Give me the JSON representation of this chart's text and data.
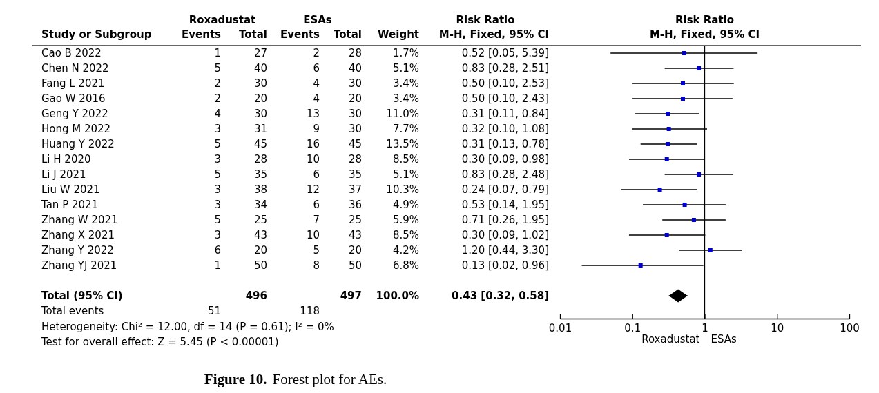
{
  "chart_data": [
    {
      "type": "other",
      "ylabel": "Study or Subgroup",
      "data_labels": true,
      "categories": [
        "Cao B 2022",
        "Chen N 2022",
        "Fang L 2021",
        "Gao W 2016",
        "Geng Y 2022",
        "Hong M 2022",
        "Huang Y 2022",
        "Li H 2020",
        "Li J 2021",
        "Liu W 2021",
        "Tan P 2021",
        "Zhang W 2021",
        "Zhang X 2021",
        "Zhang Y 2022",
        "Zhang YJ 2021",
        null,
        "Total (95% CI)",
        "Total events"
      ],
      "series": [
        {
          "name": "Events",
          "values": [
            1,
            5,
            2,
            2,
            4,
            3,
            5,
            3,
            5,
            3,
            3,
            5,
            3,
            6,
            1,
            null,
            null,
            51
          ]
        },
        {
          "name": "Total",
          "values": [
            27,
            40,
            30,
            20,
            30,
            31,
            45,
            28,
            35,
            38,
            34,
            25,
            43,
            20,
            50,
            null,
            496,
            null
          ]
        },
        {
          "name": "Events",
          "values": [
            2,
            6,
            4,
            4,
            13,
            9,
            16,
            10,
            6,
            12,
            6,
            7,
            10,
            5,
            8,
            null,
            null,
            118
          ]
        },
        {
          "name": "Total",
          "values": [
            28,
            40,
            30,
            20,
            30,
            30,
            45,
            28,
            35,
            37,
            36,
            25,
            43,
            20,
            50,
            null,
            497,
            null
          ]
        },
        {
          "name": "Weight",
          "values": [
            1.7,
            5.1,
            3.4,
            3.4,
            11.0,
            7.7,
            13.5,
            8.5,
            5.1,
            10.3,
            4.9,
            5.9,
            8.5,
            4.2,
            6.8,
            null,
            100.0,
            null
          ],
          "value_labels": [
            "1.7%",
            "5.1%",
            "3.4%",
            "3.4%",
            "11.0%",
            "7.7%",
            "13.5%",
            "8.5%",
            "5.1%",
            "10.3%",
            "4.9%",
            "5.9%",
            "8.5%",
            "4.2%",
            "6.8%",
            null,
            "100.0%",
            null
          ]
        },
        {
          "name": "M-H, Fixed, 95% CI",
          "values": [
            0.52,
            0.83,
            0.5,
            0.5,
            0.31,
            0.32,
            0.31,
            0.3,
            0.83,
            0.24,
            0.53,
            0.71,
            0.3,
            1.2,
            0.13,
            null,
            0.43,
            null
          ],
          "value_labels": [
            "0.52 [0.05, 5.39]",
            "0.83 [0.28, 2.51]",
            "0.50 [0.10, 2.53]",
            "0.50 [0.10, 2.43]",
            "0.31 [0.11, 0.84]",
            "0.32 [0.10, 1.08]",
            "0.31 [0.13, 0.78]",
            "0.30 [0.09, 0.98]",
            "0.83 [0.28, 2.48]",
            "0.24 [0.07, 0.79]",
            "0.53 [0.14, 1.95]",
            "0.71 [0.26, 1.95]",
            "0.30 [0.09, 1.02]",
            "1.20 [0.44, 3.30]",
            "0.13 [0.02, 0.96]",
            null,
            "0.43 [0.32, 0.58]",
            null
          ]
        }
      ],
      "annotations": [
        "Roxadustat",
        "ESAs",
        "Risk Ratio",
        "Heterogeneity: Chi² = 12.00, df = 14 (P = 0.61); I² = 0%",
        "Test for overall effect: Z = 5.45 (P < 0.00001)",
        "Figure 10.",
        "Forest plot for AEs."
      ]
    },
    {
      "type": "scatter",
      "orientation": "horizontal",
      "title": "Risk Ratio",
      "subtitle": "M-H, Fixed, 95% CI",
      "log": "x",
      "categories": [
        null,
        null,
        null,
        null,
        null,
        null,
        null,
        null,
        null,
        null,
        null,
        null,
        null,
        null,
        null,
        null,
        null,
        null
      ],
      "xlim": [
        0.01,
        100
      ],
      "xticks": [
        0.01,
        0.1,
        1,
        10,
        100
      ],
      "ref_lines": [
        {
          "axis": "x",
          "value": 1
        }
      ],
      "annotations": [
        "Roxadustat",
        "ESAs"
      ],
      "series": [
        {
          "type": "scatter",
          "color": "#0000cc",
          "marker": "square",
          "values": [
            0.52,
            0.83,
            0.5,
            0.5,
            0.31,
            0.32,
            0.31,
            0.3,
            0.83,
            0.24,
            0.53,
            0.71,
            0.3,
            1.2,
            0.13,
            null,
            null,
            null
          ],
          "errors": [
            [
              0.05,
              5.39
            ],
            [
              0.28,
              2.51
            ],
            [
              0.1,
              2.53
            ],
            [
              0.1,
              2.43
            ],
            [
              0.11,
              0.84
            ],
            [
              0.1,
              1.08
            ],
            [
              0.13,
              0.78
            ],
            [
              0.09,
              0.98
            ],
            [
              0.28,
              2.48
            ],
            [
              0.07,
              0.79
            ],
            [
              0.14,
              1.95
            ],
            [
              0.26,
              1.95
            ],
            [
              0.09,
              1.02
            ],
            [
              0.44,
              3.3
            ],
            [
              0.02,
              0.96
            ],
            null,
            null,
            null
          ]
        },
        {
          "type": "scatter",
          "color": "#000000",
          "marker": "diamond",
          "values": [
            null,
            null,
            null,
            null,
            null,
            null,
            null,
            null,
            null,
            null,
            null,
            null,
            null,
            null,
            null,
            null,
            0.43,
            null
          ],
          "errors": [
            null,
            null,
            null,
            null,
            null,
            null,
            null,
            null,
            null,
            null,
            null,
            null,
            null,
            null,
            null,
            null,
            [
              0.32,
              0.58
            ],
            null
          ]
        }
      ]
    }
  ]
}
